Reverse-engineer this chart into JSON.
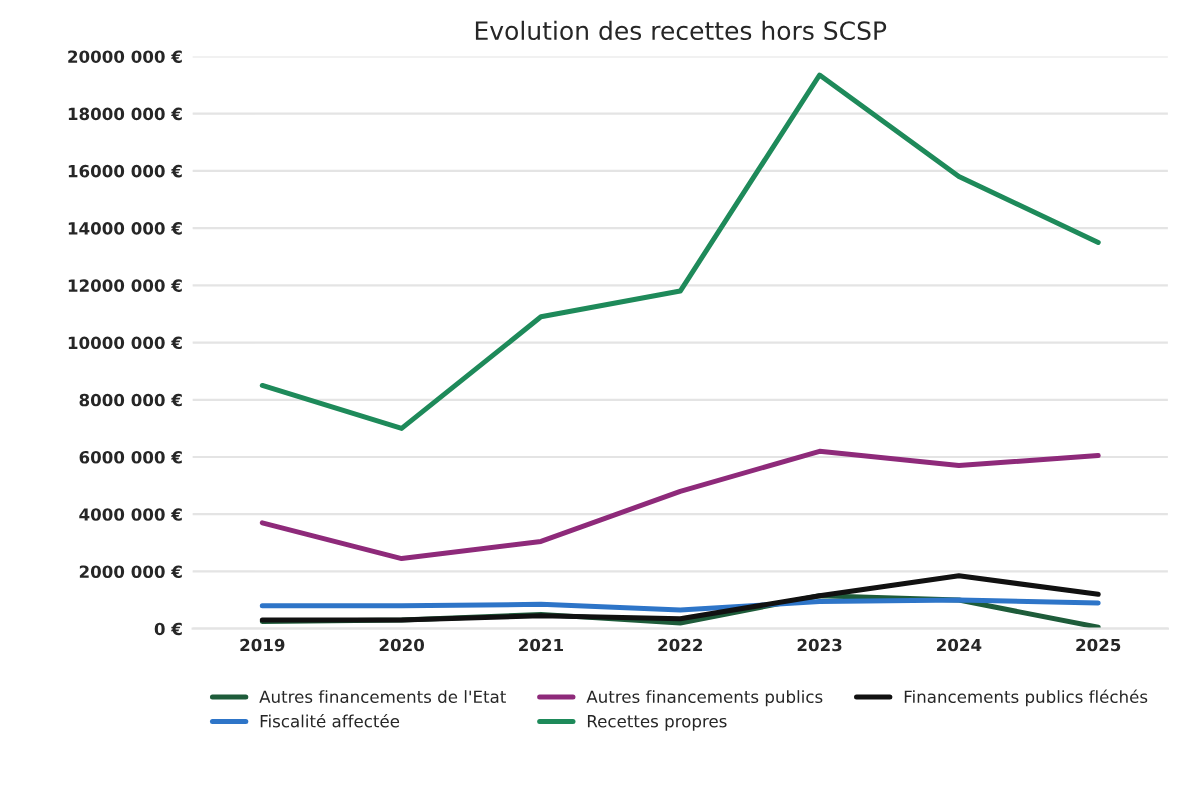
{
  "chart_data": {
    "type": "line",
    "title": "Evolution des recettes hors SCSP",
    "categories": [
      "2019",
      "2020",
      "2021",
      "2022",
      "2023",
      "2024",
      "2025"
    ],
    "series": [
      {
        "name": "Autres financements de l'Etat",
        "color": "#1e5c3a",
        "values": [
          250000,
          300000,
          500000,
          200000,
          1150000,
          1000000,
          50000
        ]
      },
      {
        "name": "Fiscalité affectée",
        "color": "#2e75c8",
        "values": [
          800000,
          800000,
          850000,
          650000,
          950000,
          1000000,
          900000
        ]
      },
      {
        "name": "Autres financements publics",
        "color": "#8e2a7a",
        "values": [
          3700000,
          2450000,
          3050000,
          4800000,
          6200000,
          5700000,
          6050000
        ]
      },
      {
        "name": "Recettes propres",
        "color": "#1e8a5a",
        "values": [
          8500000,
          7000000,
          10900000,
          11800000,
          19350000,
          15800000,
          13500000
        ]
      },
      {
        "name": "Financements publics fléchés",
        "color": "#111111",
        "values": [
          300000,
          300000,
          450000,
          350000,
          1150000,
          1850000,
          1200000
        ]
      }
    ],
    "ylim": [
      0,
      20000000
    ],
    "yticks": [
      {
        "value": 0,
        "label": "0 €"
      },
      {
        "value": 2000000,
        "label": "2000 000 €"
      },
      {
        "value": 4000000,
        "label": "4000 000 €"
      },
      {
        "value": 6000000,
        "label": "6000 000 €"
      },
      {
        "value": 8000000,
        "label": "8000 000 €"
      },
      {
        "value": 10000000,
        "label": "10000 000 €"
      },
      {
        "value": 12000000,
        "label": "12000 000 €"
      },
      {
        "value": 14000000,
        "label": "14000 000 €"
      },
      {
        "value": 16000000,
        "label": "16000 000 €"
      },
      {
        "value": 18000000,
        "label": "18000 000 €"
      },
      {
        "value": 20000000,
        "label": "20000 000 €"
      }
    ],
    "grid": "y",
    "legend": "bottom"
  }
}
